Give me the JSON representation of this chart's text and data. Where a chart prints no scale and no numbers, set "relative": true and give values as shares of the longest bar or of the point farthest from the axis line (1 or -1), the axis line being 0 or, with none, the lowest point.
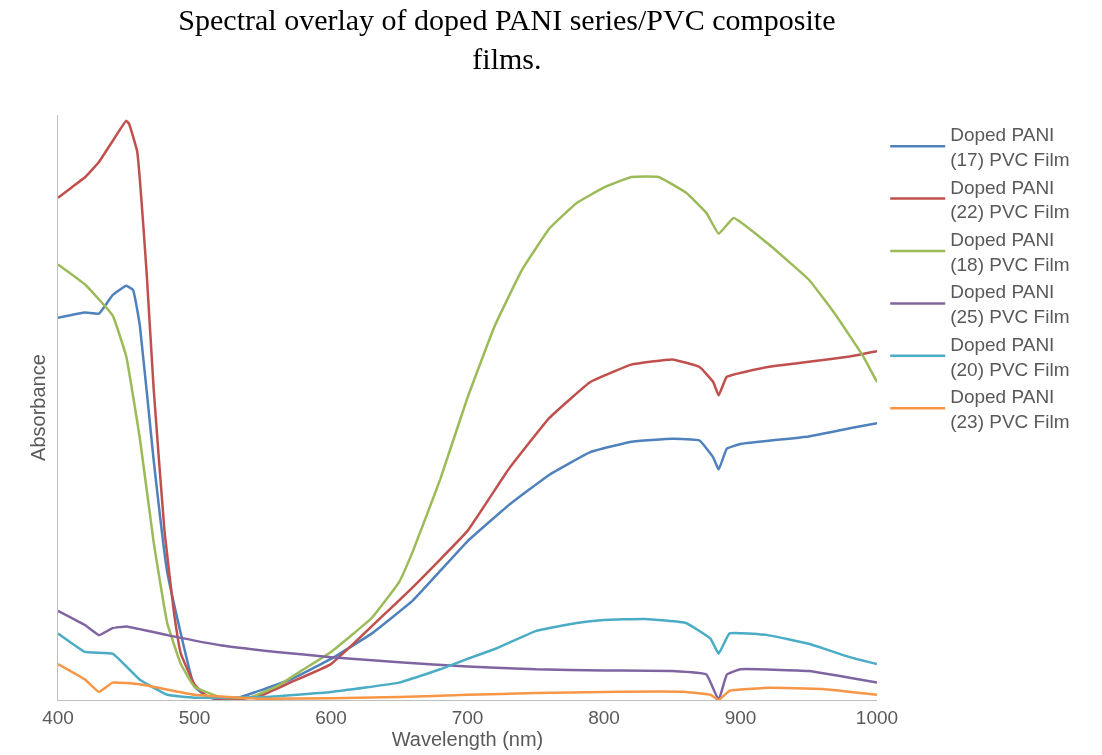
{
  "chart_data": {
    "type": "line",
    "title": "Spectral overlay of doped PANI series/PVC composite films.",
    "xlabel": "Wavelength (nm)",
    "ylabel": "Absorbance",
    "relative": true,
    "xlim": [
      400,
      1000
    ],
    "xticks": [
      400,
      500,
      600,
      700,
      800,
      900,
      1000
    ],
    "grid": false,
    "legend": "right",
    "marker": "none",
    "line_style": "solid",
    "series": [
      {
        "name": "Doped PANI (17) PVC Film",
        "color": "#4f81bd",
        "x": [
          400,
          420,
          430,
          440,
          450,
          455,
          460,
          470,
          480,
          500,
          510,
          520,
          530,
          550,
          570,
          600,
          630,
          660,
          700,
          730,
          760,
          790,
          820,
          850,
          870,
          880,
          884,
          890,
          900,
          950,
          980,
          1000
        ],
        "values": [
          0.66,
          0.669,
          0.667,
          0.699,
          0.715,
          0.708,
          0.646,
          0.416,
          0.221,
          0.023,
          0.005,
          0,
          0.002,
          0.018,
          0.035,
          0.071,
          0.115,
          0.172,
          0.274,
          0.336,
          0.389,
          0.428,
          0.446,
          0.451,
          0.448,
          0.419,
          0.398,
          0.434,
          0.442,
          0.455,
          0.469,
          0.478
        ]
      },
      {
        "name": "Doped PANI (22) PVC Film",
        "color": "#c0504d",
        "x": [
          400,
          410,
          420,
          430,
          440,
          450,
          452,
          458,
          465,
          470,
          478,
          485,
          490,
          500,
          510,
          530,
          550,
          570,
          600,
          640,
          660,
          700,
          730,
          760,
          790,
          820,
          850,
          870,
          880,
          884,
          890,
          920,
          950,
          980,
          1000
        ],
        "values": [
          0.867,
          0.885,
          0.903,
          0.929,
          0.965,
          1.0,
          0.995,
          0.947,
          0.735,
          0.54,
          0.292,
          0.15,
          0.08,
          0.027,
          0.005,
          0,
          0.009,
          0.03,
          0.062,
          0.15,
          0.195,
          0.292,
          0.398,
          0.487,
          0.549,
          0.579,
          0.588,
          0.575,
          0.549,
          0.526,
          0.558,
          0.575,
          0.584,
          0.593,
          0.602
        ]
      },
      {
        "name": "Doped PANI (18) PVC Film",
        "color": "#9bbb59",
        "x": [
          400,
          420,
          440,
          450,
          460,
          470,
          480,
          490,
          500,
          520,
          540,
          560,
          580,
          600,
          630,
          650,
          660,
          680,
          700,
          720,
          740,
          760,
          780,
          800,
          820,
          840,
          860,
          875,
          884,
          895,
          920,
          950,
          970,
          990,
          1000
        ],
        "values": [
          0.752,
          0.717,
          0.664,
          0.593,
          0.451,
          0.274,
          0.133,
          0.062,
          0.023,
          0.004,
          0.004,
          0.023,
          0.053,
          0.083,
          0.142,
          0.204,
          0.257,
          0.381,
          0.522,
          0.646,
          0.743,
          0.814,
          0.858,
          0.885,
          0.903,
          0.903,
          0.876,
          0.841,
          0.805,
          0.832,
          0.788,
          0.726,
          0.664,
          0.593,
          0.549
        ]
      },
      {
        "name": "Doped PANI (25) PVC Film",
        "color": "#8064a2",
        "x": [
          400,
          420,
          430,
          440,
          450,
          480,
          520,
          560,
          600,
          650,
          700,
          750,
          800,
          850,
          875,
          884,
          890,
          900,
          950,
          1000
        ],
        "values": [
          0.154,
          0.129,
          0.112,
          0.124,
          0.127,
          0.112,
          0.094,
          0.083,
          0.074,
          0.065,
          0.058,
          0.053,
          0.051,
          0.05,
          0.044,
          0,
          0.044,
          0.053,
          0.05,
          0.03
        ]
      },
      {
        "name": "Doped PANI (20) PVC Film",
        "color": "#4bacc6",
        "x": [
          400,
          420,
          440,
          460,
          480,
          500,
          550,
          600,
          650,
          680,
          700,
          720,
          750,
          780,
          800,
          830,
          860,
          878,
          884,
          892,
          920,
          950,
          980,
          1000
        ],
        "values": [
          0.115,
          0.083,
          0.08,
          0.035,
          0.009,
          0.004,
          0.005,
          0.014,
          0.03,
          0.053,
          0.071,
          0.088,
          0.119,
          0.133,
          0.138,
          0.14,
          0.133,
          0.106,
          0.08,
          0.115,
          0.112,
          0.097,
          0.074,
          0.062
        ]
      },
      {
        "name": "Doped PANI (23) PVC Film",
        "color": "#f79646",
        "x": [
          400,
          420,
          430,
          440,
          460,
          500,
          550,
          650,
          700,
          750,
          800,
          860,
          878,
          884,
          892,
          920,
          960,
          1000
        ],
        "values": [
          0.062,
          0.035,
          0.014,
          0.03,
          0.027,
          0.009,
          0.002,
          0.005,
          0.009,
          0.012,
          0.014,
          0.014,
          0.009,
          0,
          0.016,
          0.021,
          0.019,
          0.009
        ]
      }
    ]
  }
}
